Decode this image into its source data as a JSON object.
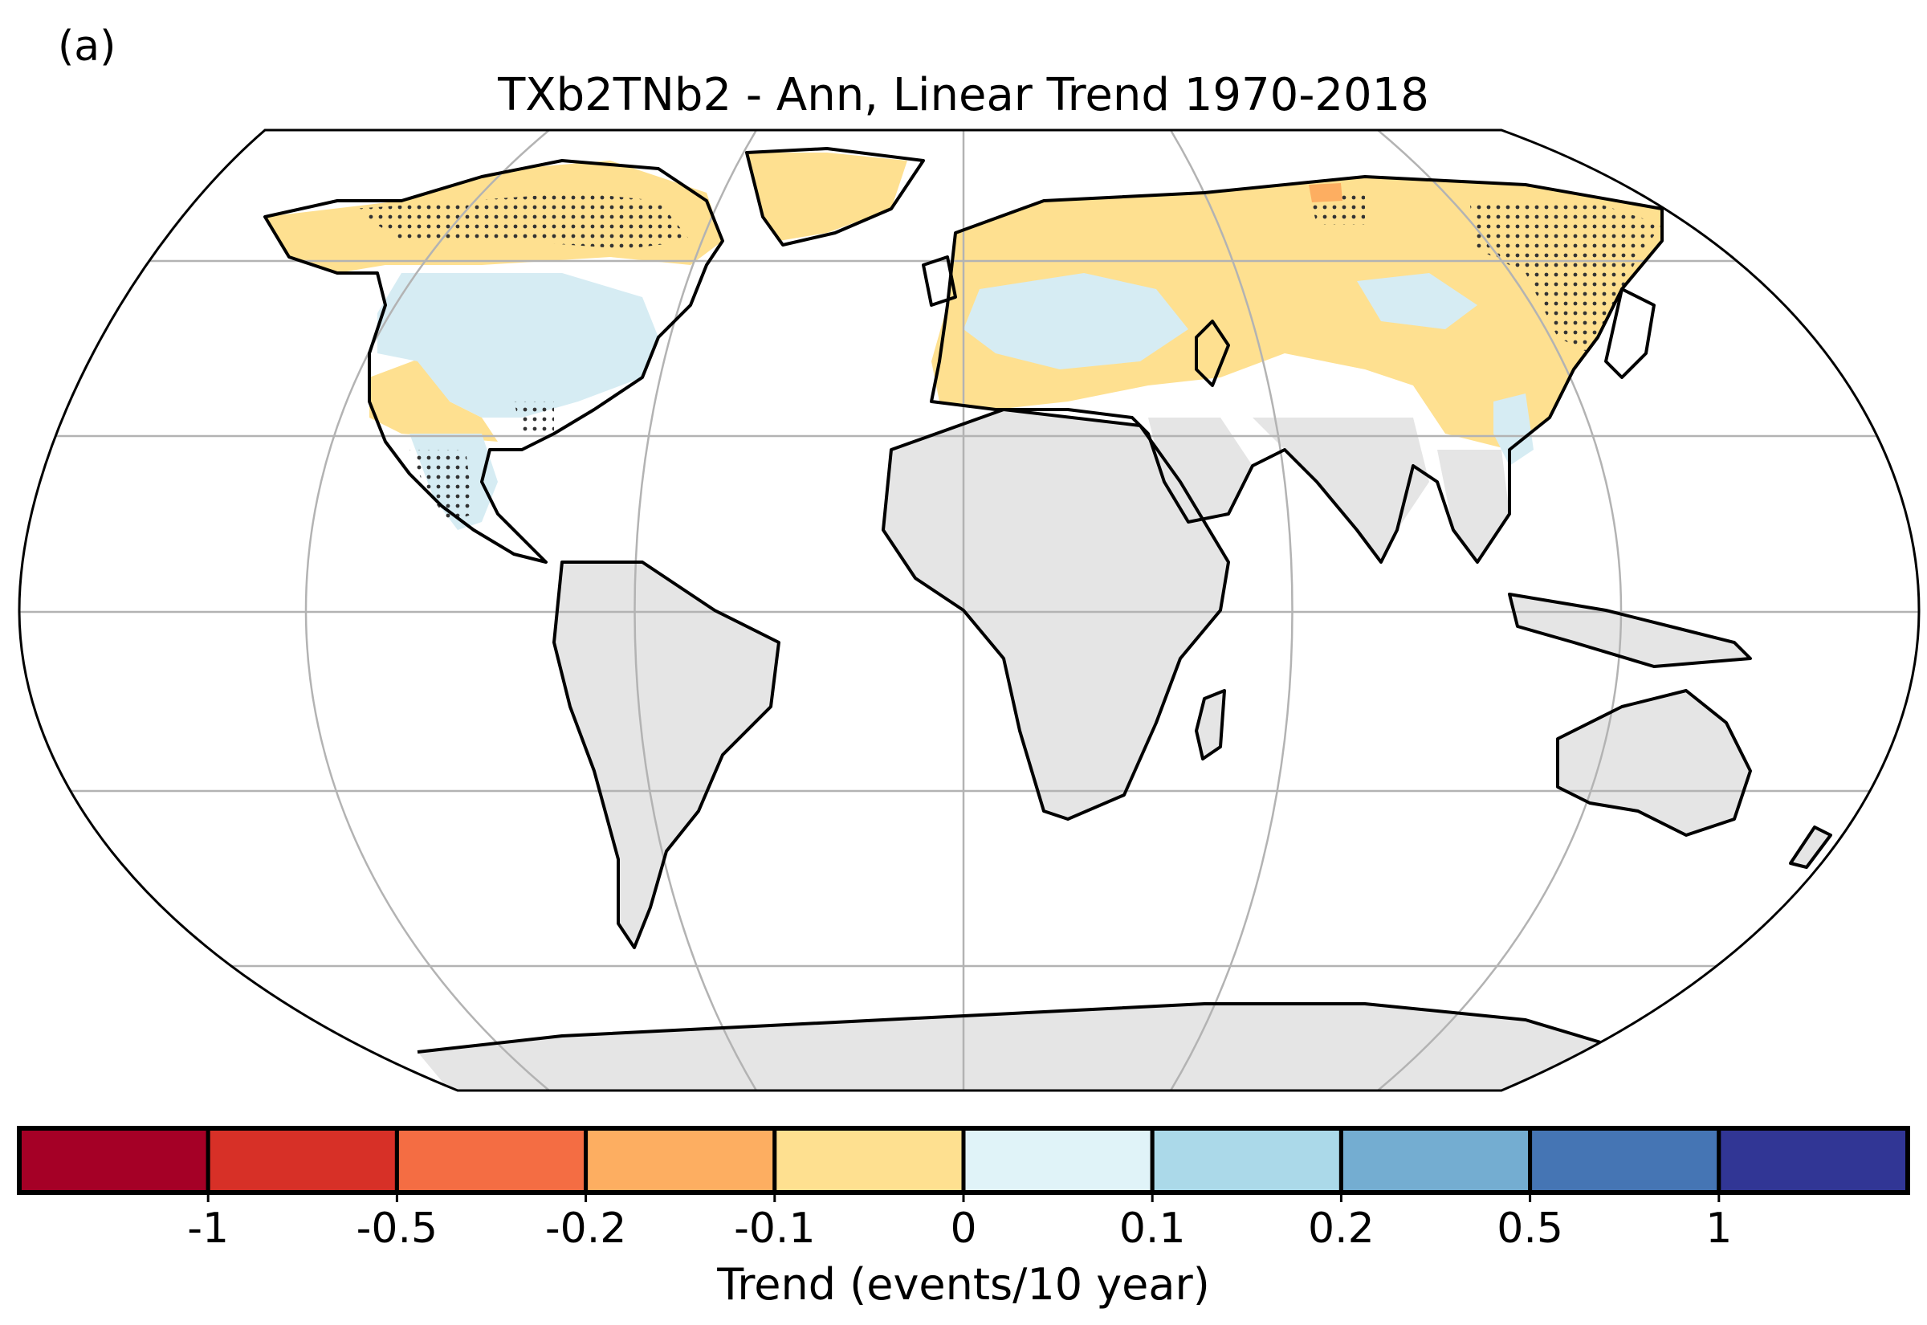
{
  "panel_label": "(a)",
  "title": "TXb2TNb2 - Ann, Linear Trend 1970-2018",
  "colorbar": {
    "label": "Trend (events/10 year)",
    "tick_labels": [
      "-1",
      "-0.5",
      "-0.2",
      "-0.1",
      "0",
      "0.1",
      "0.2",
      "0.5",
      "1"
    ],
    "colors": [
      "#a50026",
      "#d73027",
      "#f46d43",
      "#fdae61",
      "#fee090",
      "#e0f3f8",
      "#abd9e9",
      "#74add1",
      "#4575b4",
      "#313695"
    ],
    "extend": "both"
  },
  "map": {
    "projection": "robinson",
    "land_no_data_color": "#e5e5e5",
    "significance_marker": "stippling",
    "gridlines": true
  }
}
